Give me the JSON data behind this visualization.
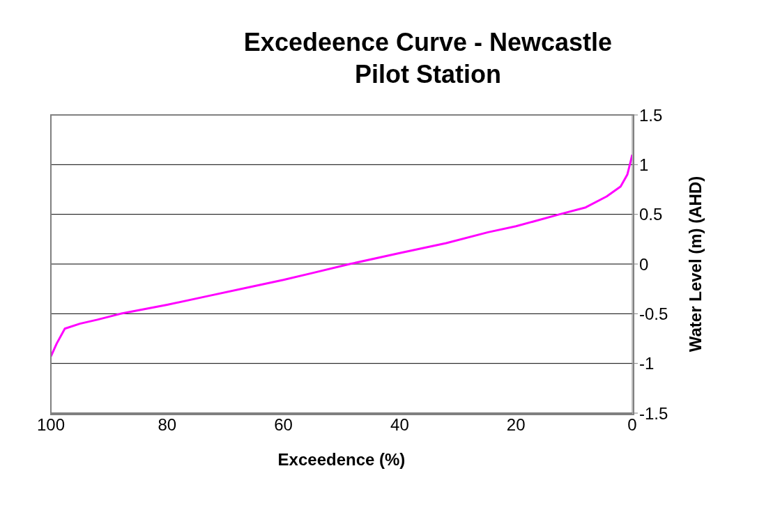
{
  "chart_data": {
    "type": "line",
    "title": "Excedeence Curve - Newcastle Pilot Station",
    "xlabel": "Exceedence (%)",
    "ylabel": "Water Level (m) (AHD)",
    "x": [
      100,
      99,
      97.6,
      95,
      92,
      88,
      80,
      72.8,
      65.6,
      60,
      55,
      48.6,
      40,
      32,
      24.8,
      20,
      12.5,
      8,
      4.4,
      2,
      0.84,
      0.24,
      0
    ],
    "series": [
      {
        "color": "#ff00ff",
        "values": [
          -0.93,
          -0.8,
          -0.65,
          -0.6,
          -0.56,
          -0.5,
          -0.41,
          -0.32,
          -0.23,
          -0.16,
          -0.09,
          0,
          0.11,
          0.21,
          0.32,
          0.38,
          0.5,
          0.57,
          0.68,
          0.78,
          0.9,
          1.04,
          1.1
        ]
      }
    ],
    "xlim": [
      100,
      0
    ],
    "xticks": [
      100,
      80,
      60,
      40,
      20,
      0
    ],
    "ylim": [
      -1.5,
      1.5
    ],
    "yticks": [
      -1.5,
      -1,
      -0.5,
      0,
      0.5,
      1,
      1.5
    ],
    "grid": "y",
    "marker": "none",
    "line_style": "solid"
  }
}
